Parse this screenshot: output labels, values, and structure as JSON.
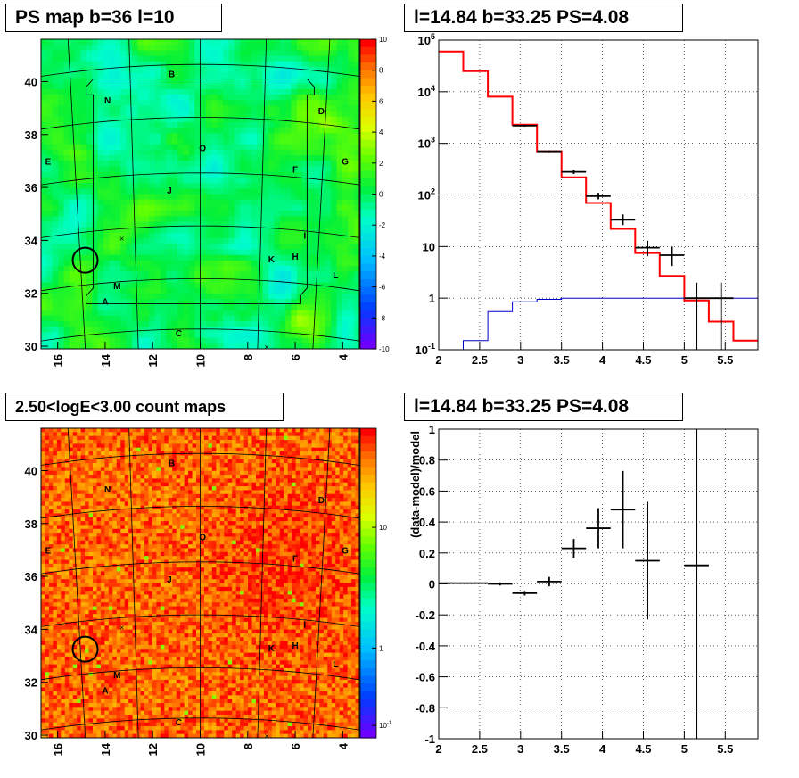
{
  "panels": {
    "ps_map_title": "PS map b=36 l=10",
    "spectrum_title": "l=14.84 b=33.25 PS=4.08",
    "count_map_title": "2.50<logE<3.00 count maps",
    "residual_title": "l=14.84 b=33.25 PS=4.08"
  },
  "colors": {
    "data": "#000000",
    "model": "#ff0000",
    "background_model": "#0000cc"
  },
  "chart_data": [
    {
      "type": "heatmap",
      "name": "ps_map",
      "xlim": [
        16.7,
        3.3
      ],
      "ylim": [
        29.9,
        41.6
      ],
      "x_ticks": [
        16,
        14,
        12,
        10,
        8,
        6,
        4
      ],
      "y_ticks": [
        30,
        32,
        34,
        36,
        38,
        40
      ],
      "colorbar": {
        "range": [
          -10,
          10
        ],
        "ticks": [
          10,
          8,
          6,
          4,
          2,
          0,
          -2,
          -4,
          -6,
          -8,
          -10
        ]
      },
      "region_labels": [
        {
          "text": "B",
          "l": 11.2,
          "b": 40.3
        },
        {
          "text": "N",
          "l": 13.9,
          "b": 39.3
        },
        {
          "text": "D",
          "l": 4.9,
          "b": 38.9
        },
        {
          "text": "O",
          "l": 9.9,
          "b": 37.5
        },
        {
          "text": "E",
          "l": 16.4,
          "b": 37.0
        },
        {
          "text": "G",
          "l": 3.9,
          "b": 37.0
        },
        {
          "text": "F",
          "l": 6.0,
          "b": 36.7
        },
        {
          "text": "J",
          "l": 11.3,
          "b": 35.9
        },
        {
          "text": "I",
          "l": 5.6,
          "b": 34.2
        },
        {
          "text": "K",
          "l": 7.0,
          "b": 33.3
        },
        {
          "text": "H",
          "l": 6.0,
          "b": 33.4
        },
        {
          "text": "L",
          "l": 4.3,
          "b": 32.7
        },
        {
          "text": "M",
          "l": 13.5,
          "b": 32.3
        },
        {
          "text": "A",
          "l": 14.0,
          "b": 31.7
        },
        {
          "text": "C",
          "l": 10.9,
          "b": 30.5
        }
      ]
    },
    {
      "type": "line",
      "name": "spectrum",
      "xlim": [
        2,
        5.9
      ],
      "ylim": [
        0.1,
        100000
      ],
      "yscale": "log",
      "x_ticks": [
        2,
        2.5,
        3,
        3.5,
        4,
        4.5,
        5,
        5.5
      ],
      "y_tick_labels": [
        "10^-1",
        "1",
        "10",
        "10^2",
        "10^3",
        "10^4",
        "10^5"
      ],
      "y_tick_values": [
        0.1,
        1,
        10,
        100,
        1000,
        10000,
        100000
      ],
      "bin_edges": [
        2.0,
        2.3,
        2.6,
        2.9,
        3.2,
        3.5,
        3.8,
        4.1,
        4.4,
        4.7,
        5.0,
        5.3,
        5.6,
        5.9
      ],
      "series": [
        {
          "role": "model",
          "values": [
            60000,
            25000,
            8000,
            2300,
            700,
            220,
            70,
            22,
            7.5,
            2.7,
            0.9,
            0.35,
            0.15
          ]
        },
        {
          "role": "background",
          "values": [
            0.06,
            0.15,
            0.55,
            0.85,
            0.95,
            1.0,
            1.0,
            1.0,
            1.0,
            1.0,
            1.0,
            1.0,
            1.0
          ]
        },
        {
          "role": "data",
          "points": [
            {
              "x": 3.05,
              "y": 2200,
              "xerr": 0.15,
              "ylo": 2100,
              "yhi": 2300
            },
            {
              "x": 3.35,
              "y": 700,
              "xerr": 0.15,
              "ylo": 670,
              "yhi": 730
            },
            {
              "x": 3.65,
              "y": 280,
              "xerr": 0.15,
              "ylo": 255,
              "yhi": 305
            },
            {
              "x": 3.95,
              "y": 95,
              "xerr": 0.15,
              "ylo": 82,
              "yhi": 110
            },
            {
              "x": 4.25,
              "y": 33,
              "xerr": 0.15,
              "ylo": 26,
              "yhi": 42
            },
            {
              "x": 4.55,
              "y": 9.5,
              "xerr": 0.15,
              "ylo": 6.5,
              "yhi": 13
            },
            {
              "x": 4.85,
              "y": 6.8,
              "xerr": 0.15,
              "ylo": 4.2,
              "yhi": 10
            },
            {
              "x": 5.15,
              "y": 1.0,
              "xerr": 0.15,
              "ylo": 0.1,
              "yhi": 2.0
            },
            {
              "x": 5.45,
              "y": 1.0,
              "xerr": 0.15,
              "ylo": 0.1,
              "yhi": 2.0
            }
          ]
        }
      ]
    },
    {
      "type": "heatmap",
      "name": "count_map",
      "xlim": [
        16.7,
        3.3
      ],
      "ylim": [
        29.9,
        41.6
      ],
      "x_ticks": [
        16,
        14,
        12,
        10,
        8,
        6,
        4
      ],
      "y_ticks": [
        30,
        32,
        34,
        36,
        38,
        40
      ],
      "colorbar": {
        "scale": "log",
        "tick_labels": [
          "10",
          "1",
          "10^-1"
        ]
      },
      "region_labels": "same as ps_map"
    },
    {
      "type": "scatter",
      "name": "residuals",
      "xlim": [
        2,
        5.9
      ],
      "ylim": [
        -1,
        1
      ],
      "x_ticks": [
        2,
        2.5,
        3,
        3.5,
        4,
        4.5,
        5,
        5.5
      ],
      "y_ticks": [
        -1,
        -0.8,
        -0.6,
        -0.4,
        -0.2,
        0,
        0.2,
        0.4,
        0.6,
        0.8,
        1
      ],
      "ylabel": "(data-model)/model",
      "points": [
        {
          "x": 2.15,
          "y": 0.005,
          "xerr": 0.15,
          "yerr": 0.005
        },
        {
          "x": 2.45,
          "y": 0.005,
          "xerr": 0.15,
          "yerr": 0.005
        },
        {
          "x": 2.75,
          "y": 0.0,
          "xerr": 0.15,
          "yerr": 0.01
        },
        {
          "x": 3.05,
          "y": -0.06,
          "xerr": 0.15,
          "yerr": 0.015
        },
        {
          "x": 3.35,
          "y": 0.015,
          "xerr": 0.15,
          "yerr": 0.03
        },
        {
          "x": 3.65,
          "y": 0.23,
          "xerr": 0.15,
          "yerr": 0.06
        },
        {
          "x": 3.95,
          "y": 0.36,
          "xerr": 0.15,
          "yerr": 0.13
        },
        {
          "x": 4.25,
          "y": 0.48,
          "xerr": 0.15,
          "yerr": 0.25
        },
        {
          "x": 4.55,
          "y": 0.15,
          "xerr": 0.15,
          "yerr": 0.38
        },
        {
          "x": 5.15,
          "y": 0.12,
          "xerr": 0.15,
          "yerr": 1.3
        }
      ]
    }
  ]
}
